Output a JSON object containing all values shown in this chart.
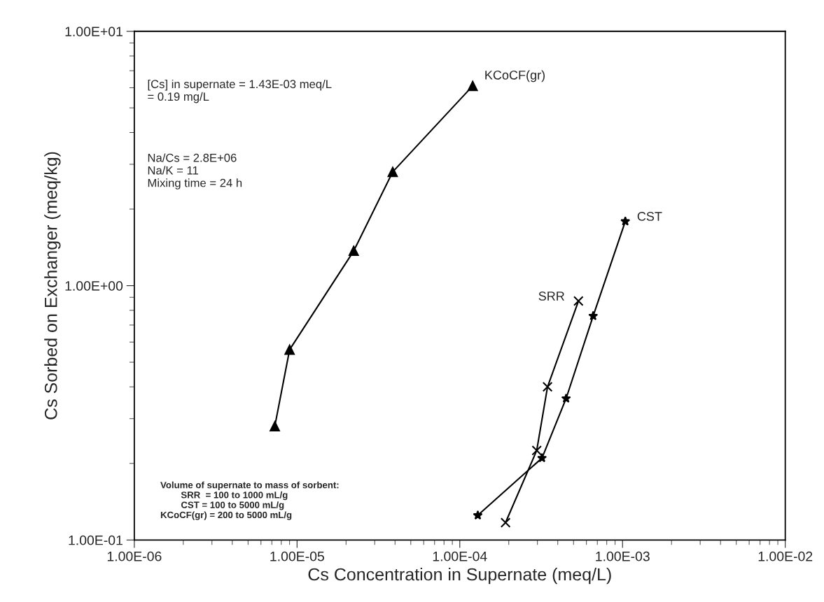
{
  "chart_data": {
    "type": "line",
    "xlabel": "Cs Concentration in Supernate (meq/L)",
    "ylabel": "Cs Sorbed on Exchanger (meq/kg)",
    "log": "xy",
    "grid": false,
    "legend": false,
    "line_style": "solid",
    "xlim": [
      1e-06,
      0.01
    ],
    "xticks": [
      {
        "value": 1e-06,
        "label": "1.00E-06"
      },
      {
        "value": 1e-05,
        "label": "1.00E-05"
      },
      {
        "value": 0.0001,
        "label": "1.00E-04"
      },
      {
        "value": 0.001,
        "label": "1.00E-03"
      },
      {
        "value": 0.01,
        "label": "1.00E-02"
      }
    ],
    "ylim": [
      0.1,
      10
    ],
    "yticks": [
      {
        "value": 0.1,
        "label": "1.00E-01"
      },
      {
        "value": 1,
        "label": "1.00E+00"
      },
      {
        "value": 10,
        "label": "1.00E+01"
      }
    ],
    "series": [
      {
        "name": "KCoCF(gr)",
        "color": "#000000",
        "marker": "triangle",
        "x": [
          7.3e-06,
          9e-06,
          2.23e-05,
          3.87e-05,
          0.00012
        ],
        "values": [
          0.28,
          0.56,
          1.37,
          2.8,
          6.1
        ]
      },
      {
        "name": "CST",
        "color": "#000000",
        "marker": "star",
        "x": [
          0.000129,
          0.00032,
          0.00045,
          0.00066,
          0.00104
        ],
        "values": [
          0.125,
          0.21,
          0.36,
          0.76,
          1.79
        ]
      },
      {
        "name": "SRR",
        "color": "#000000",
        "marker": "cross",
        "x": [
          0.000191,
          0.000297,
          0.000346,
          0.000536
        ],
        "values": [
          0.117,
          0.225,
          0.4,
          0.87
        ]
      }
    ],
    "annotations": [
      "[Cs] in supernate = 1.43E-03 meq/L\n= 0.19 mg/L",
      "Na/Cs = 2.8E+06\nNa/K = 11\nMixing time = 24 h",
      "Volume of supernate to mass of sorbent:\n        SRR  = 100 to 1000 mL/g\n        CST = 100 to 5000 mL/g\nKCoCF(gr) = 200 to 5000 mL/g"
    ]
  }
}
